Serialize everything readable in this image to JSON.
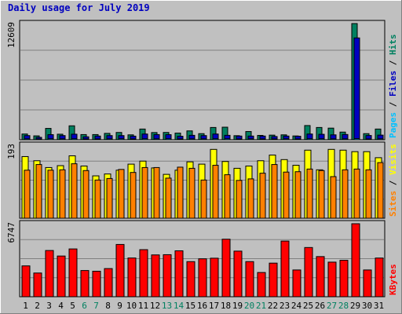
{
  "chart_data": [
    {
      "type": "bar",
      "title": "Daily usage for July 2019",
      "categories": [
        "1",
        "2",
        "3",
        "4",
        "5",
        "6",
        "7",
        "8",
        "9",
        "10",
        "11",
        "12",
        "13",
        "14",
        "15",
        "16",
        "17",
        "18",
        "19",
        "20",
        "21",
        "22",
        "23",
        "24",
        "25",
        "26",
        "27",
        "28",
        "29",
        "30",
        "31"
      ],
      "weekend_days": [
        "6",
        "7",
        "13",
        "14",
        "20",
        "21",
        "27",
        "28"
      ],
      "ylim": [
        0,
        12609
      ],
      "y_tick_label": "12609",
      "right_label": [
        "Pages",
        " / ",
        "Files",
        " / ",
        "Hits"
      ],
      "series": [
        {
          "name": "Hits",
          "color": "#008060",
          "values": [
            620,
            420,
            1230,
            600,
            1510,
            560,
            560,
            690,
            790,
            530,
            1160,
            780,
            790,
            720,
            960,
            660,
            1330,
            1360,
            440,
            890,
            470,
            500,
            530,
            410,
            1540,
            1330,
            1260,
            830,
            12609,
            660,
            1160
          ]
        },
        {
          "name": "Files",
          "color": "#00c0ff",
          "values": [
            450,
            260,
            550,
            450,
            600,
            320,
            400,
            450,
            450,
            390,
            620,
            560,
            550,
            380,
            480,
            450,
            620,
            480,
            400,
            400,
            400,
            350,
            400,
            380,
            620,
            590,
            530,
            570,
            11050,
            460,
            500
          ]
        },
        {
          "name": "Pages",
          "color": "#00c0ff",
          "values": [
            100,
            90,
            110,
            100,
            110,
            90,
            90,
            100,
            110,
            90,
            110,
            100,
            110,
            90,
            100,
            100,
            110,
            110,
            90,
            100,
            90,
            90,
            100,
            90,
            110,
            110,
            100,
            100,
            120,
            90,
            100
          ]
        }
      ]
    },
    {
      "type": "bar",
      "categories": [
        "1",
        "2",
        "3",
        "4",
        "5",
        "6",
        "7",
        "8",
        "9",
        "10",
        "11",
        "12",
        "13",
        "14",
        "15",
        "16",
        "17",
        "18",
        "19",
        "20",
        "21",
        "22",
        "23",
        "24",
        "25",
        "26",
        "27",
        "28",
        "29",
        "30",
        "31"
      ],
      "ylim": [
        0,
        193
      ],
      "y_tick_label": "193",
      "right_label": [
        "Sites",
        " / ",
        "Visits"
      ],
      "series": [
        {
          "name": "Visits",
          "color": "#ffff00",
          "values": [
            163,
            152,
            134,
            139,
            165,
            138,
            112,
            117,
            127,
            143,
            151,
            133,
            116,
            127,
            149,
            143,
            182,
            150,
            132,
            138,
            152,
            167,
            155,
            140,
            180,
            128,
            182,
            180,
            176,
            176,
            160
          ]
        },
        {
          "name": "Sites",
          "color": "#ff8000",
          "values": [
            127,
            142,
            127,
            128,
            144,
            126,
            101,
            105,
            129,
            121,
            134,
            134,
            106,
            135,
            132,
            101,
            140,
            115,
            100,
            104,
            119,
            142,
            122,
            123,
            130,
            126,
            110,
            128,
            130,
            128,
            147
          ]
        }
      ]
    },
    {
      "type": "bar",
      "categories": [
        "1",
        "2",
        "3",
        "4",
        "5",
        "6",
        "7",
        "8",
        "9",
        "10",
        "11",
        "12",
        "13",
        "14",
        "15",
        "16",
        "17",
        "18",
        "19",
        "20",
        "21",
        "22",
        "23",
        "24",
        "25",
        "26",
        "27",
        "28",
        "29",
        "30",
        "31"
      ],
      "ylim": [
        0,
        6747
      ],
      "y_tick_label": "6747",
      "right_label": [
        "KBytes"
      ],
      "series": [
        {
          "name": "KBytes",
          "color": "#ff0000",
          "values": [
            2851,
            2192,
            4272,
            3762,
            4418,
            2423,
            2357,
            2602,
            4831,
            3580,
            4351,
            3865,
            3885,
            4244,
            3244,
            3505,
            3561,
            5317,
            4216,
            3245,
            2239,
            3106,
            5144,
            2474,
            4548,
            3710,
            3197,
            3369,
            6747,
            2474,
            3576
          ]
        }
      ]
    }
  ],
  "colors": {
    "background": "#c0c0c0",
    "plot_background": "#c0c0c0",
    "title": "#0000c0",
    "weekday_label": "#000000",
    "weekend_label": "#008060",
    "grid": "#808080",
    "hits": "#008060",
    "files": "#0000c0",
    "pages": "#00c0ff",
    "visits": "#ffff00",
    "sites": "#ff8000",
    "kbytes": "#ff0000"
  }
}
